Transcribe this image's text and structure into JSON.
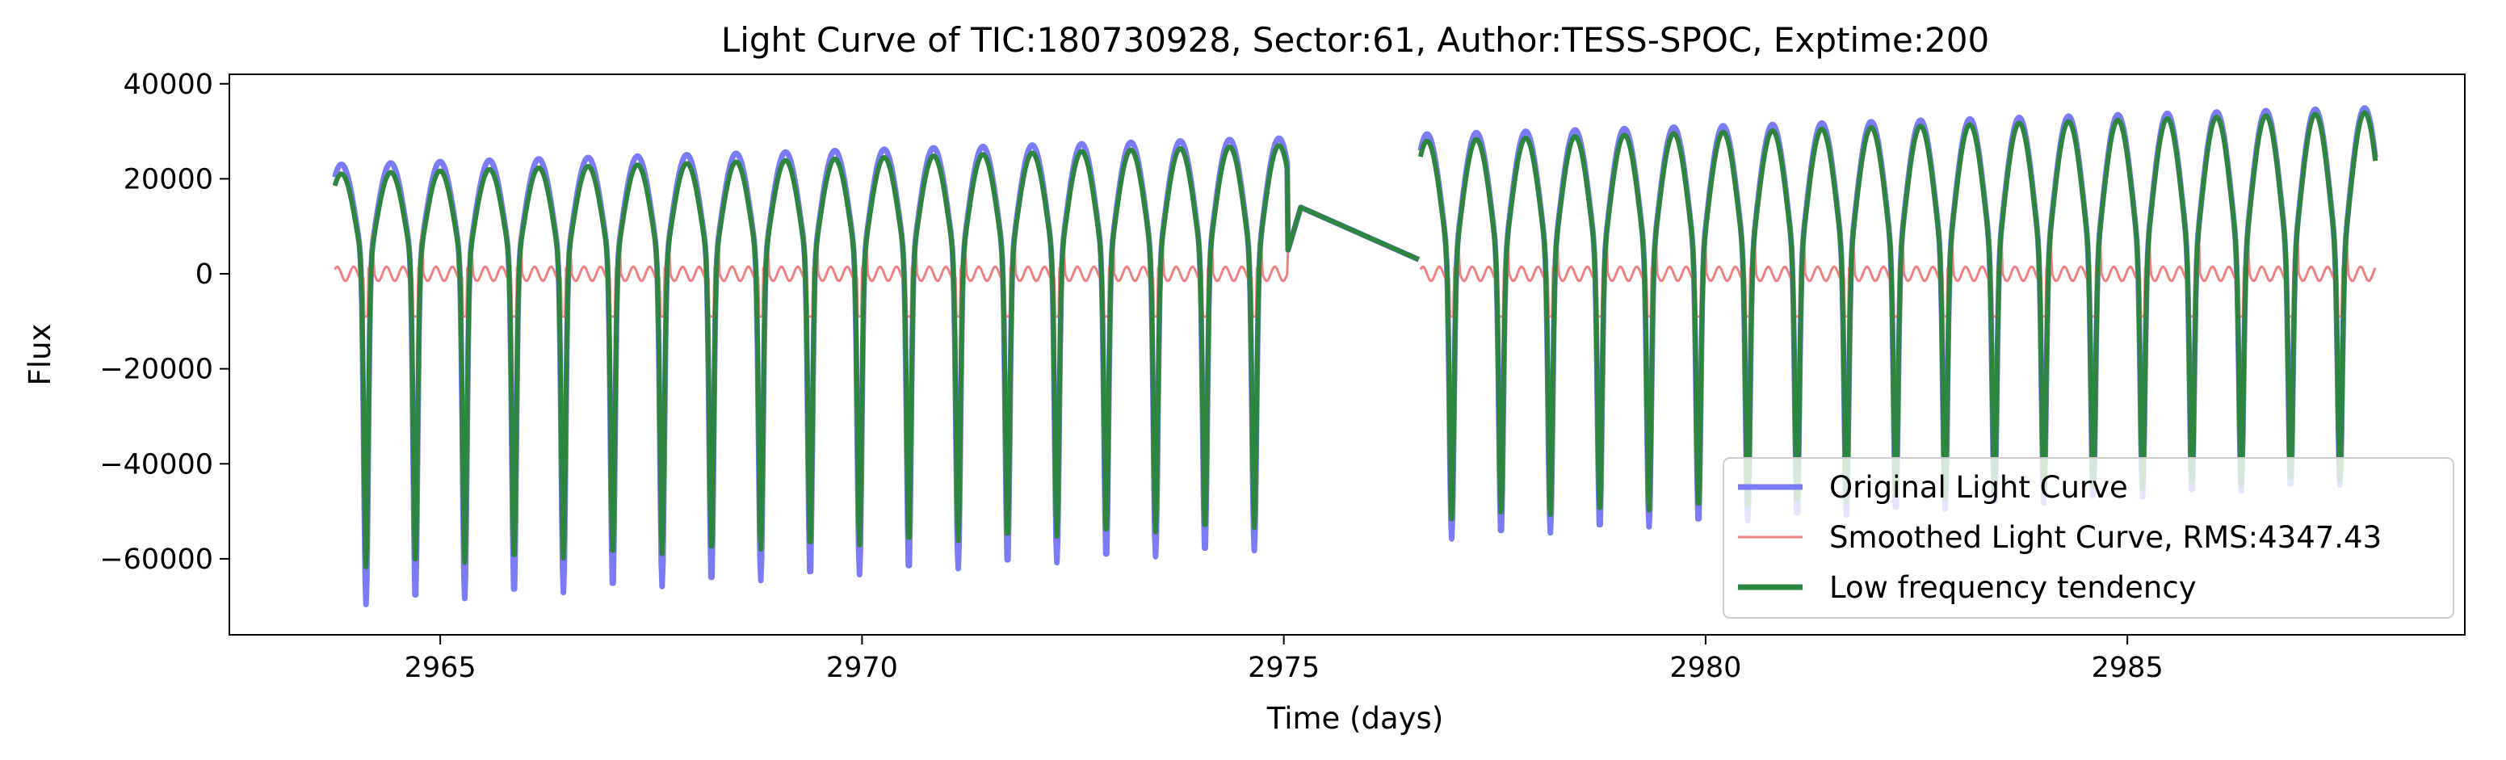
{
  "chart_data": {
    "type": "line",
    "title": "Light Curve of TIC:180730928, Sector:61, Author:TESS-SPOC, Exptime:200",
    "xlabel": "Time (days)",
    "ylabel": "Flux",
    "xlim": [
      2962.5,
      2989.0
    ],
    "ylim": [
      -76000,
      42000
    ],
    "xticks": [
      2965,
      2970,
      2975,
      2980,
      2985
    ],
    "yticks": [
      40000,
      20000,
      0,
      -20000,
      -40000,
      -60000
    ],
    "grid": false,
    "legend_position": "lower-right",
    "pulsation": {
      "period_days": 0.585,
      "phase_zero_time": 2964.12,
      "data_segments": [
        [
          2963.75,
          2975.05
        ],
        [
          2976.62,
          2987.95
        ]
      ],
      "gap_interpolation": {
        "x": [
          2975.05,
          2975.2,
          2976.6
        ],
        "y": [
          5000,
          14000,
          3000
        ]
      },
      "original_extremes": {
        "max": [
          23000,
          35000
        ],
        "min": [
          -70000,
          -44000
        ]
      },
      "low_frequency_extremes": {
        "max": [
          21000,
          34000
        ],
        "min": [
          -62000,
          -43000
        ]
      },
      "smoothed_amplitude": {
        "peak": 9000,
        "trough": -9000
      }
    },
    "series": [
      {
        "name": "Original Light Curve",
        "color": "#7b7bf5"
      },
      {
        "name": "Smoothed Light Curve, RMS:4347.43",
        "color": "#f08080"
      },
      {
        "name": "Low frequency tendency",
        "color": "#2e8540"
      }
    ]
  }
}
